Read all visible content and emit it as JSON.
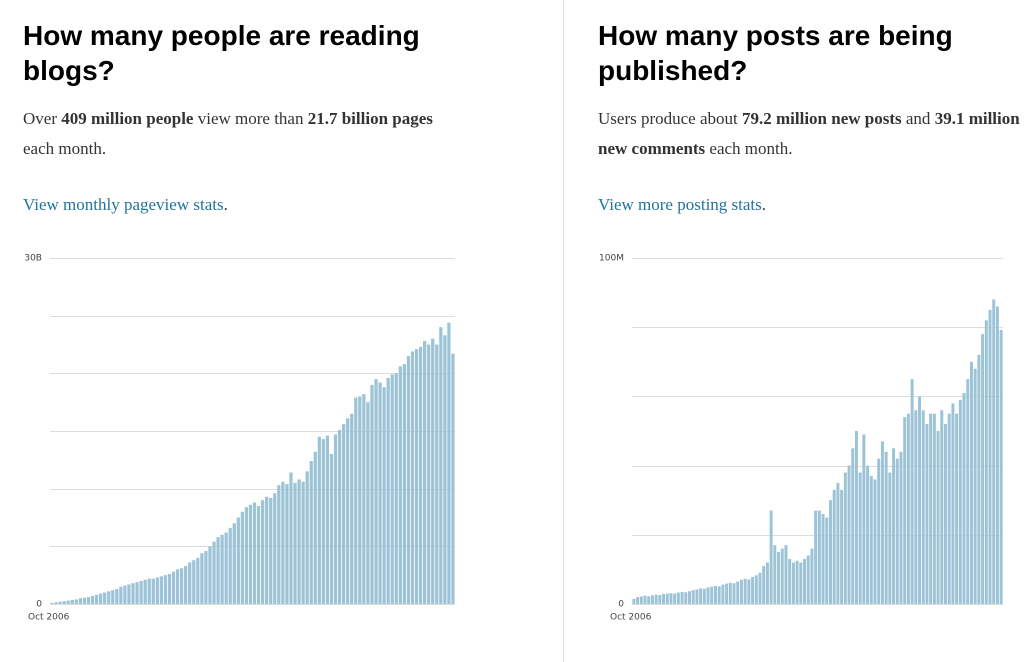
{
  "sections": [
    {
      "title": "How many people are reading blogs?",
      "paragraph": [
        "Over ",
        "409 million people",
        " view more than ",
        "21.7 billion pages",
        " each month."
      ],
      "link": "View monthly pageview stats",
      "link_after": "."
    },
    {
      "title": "How many posts are being published?",
      "paragraph": [
        "Users produce about ",
        "79.2 million new posts",
        " and ",
        "39.1 million new comments",
        " each month."
      ],
      "link": "View more posting stats",
      "link_after": "."
    }
  ],
  "chart_data": [
    {
      "type": "bar",
      "color": "#9cc4d6",
      "ylim": [
        0,
        30
      ],
      "yticks": [
        0,
        {
          "value": 30,
          "label": "30B"
        }
      ],
      "ygrid": [
        0,
        5,
        10,
        15,
        20,
        25,
        30
      ],
      "grid": true,
      "categories": [
        "Oct 2006",
        null,
        null,
        null,
        null,
        null,
        null,
        null,
        null,
        null,
        null,
        null,
        null,
        null,
        null,
        null,
        null,
        null,
        null,
        null,
        null,
        null,
        null,
        null,
        null,
        null,
        null,
        null,
        null,
        null,
        null,
        null,
        null,
        null,
        null,
        null,
        null,
        null,
        null,
        null,
        null,
        null,
        null,
        null,
        null,
        null,
        null,
        null,
        null,
        null,
        null,
        null,
        null,
        null,
        null,
        null,
        null,
        null,
        null,
        null,
        null,
        null,
        null,
        null,
        null,
        null,
        null,
        null,
        null,
        null,
        null,
        null,
        null,
        null,
        null,
        null,
        null,
        null,
        null,
        null,
        null,
        null,
        null,
        null,
        null,
        null,
        null,
        null,
        null,
        null,
        null,
        null,
        null,
        null,
        null,
        null,
        null,
        null,
        null,
        null
      ],
      "values": [
        0.1,
        0.15,
        0.2,
        0.25,
        0.3,
        0.35,
        0.4,
        0.5,
        0.55,
        0.6,
        0.7,
        0.8,
        0.9,
        1.0,
        1.1,
        1.2,
        1.3,
        1.5,
        1.6,
        1.7,
        1.8,
        1.9,
        2.0,
        2.1,
        2.2,
        2.2,
        2.3,
        2.4,
        2.5,
        2.6,
        2.8,
        3.0,
        3.1,
        3.3,
        3.6,
        3.8,
        4.0,
        4.4,
        4.6,
        5.0,
        5.4,
        5.8,
        6.0,
        6.2,
        6.6,
        7.0,
        7.5,
        8.0,
        8.4,
        8.6,
        8.8,
        8.5,
        9.0,
        9.3,
        9.2,
        9.6,
        10.3,
        10.6,
        10.4,
        11.4,
        10.5,
        10.8,
        10.6,
        11.5,
        12.4,
        13.2,
        14.5,
        14.3,
        14.6,
        13.0,
        14.7,
        15.1,
        15.6,
        16.1,
        16.5,
        17.9,
        18.0,
        18.2,
        17.5,
        19.0,
        19.5,
        19.2,
        18.8,
        19.6,
        19.9,
        20.0,
        20.6,
        20.8,
        21.5,
        21.9,
        22.1,
        22.3,
        22.8,
        22.5,
        23.0,
        22.5,
        24.0,
        23.3,
        24.4,
        21.7
      ]
    },
    {
      "type": "bar",
      "color": "#9cc4d6",
      "ylim": [
        0,
        100
      ],
      "yticks": [
        0,
        {
          "value": 100,
          "label": "100M"
        }
      ],
      "ygrid": [
        0,
        20,
        40,
        60,
        80,
        100
      ],
      "grid": true,
      "categories": [
        "Oct 2006",
        null,
        null,
        null,
        null,
        null,
        null,
        null,
        null,
        null,
        null,
        null,
        null,
        null,
        null,
        null,
        null,
        null,
        null,
        null,
        null,
        null,
        null,
        null,
        null,
        null,
        null,
        null,
        null,
        null,
        null,
        null,
        null,
        null,
        null,
        null,
        null,
        null,
        null,
        null,
        null,
        null,
        null,
        null,
        null,
        null,
        null,
        null,
        null,
        null,
        null,
        null,
        null,
        null,
        null,
        null,
        null,
        null,
        null,
        null,
        null,
        null,
        null,
        null,
        null,
        null,
        null,
        null,
        null,
        null,
        null,
        null,
        null,
        null,
        null,
        null,
        null,
        null,
        null,
        null,
        null,
        null,
        null,
        null,
        null,
        null,
        null,
        null,
        null,
        null,
        null,
        null,
        null,
        null,
        null,
        null,
        null,
        null,
        null,
        null
      ],
      "values": [
        1.5,
        2.0,
        2.2,
        2.4,
        2.2,
        2.5,
        2.7,
        2.6,
        2.9,
        3.0,
        3.1,
        3.0,
        3.3,
        3.5,
        3.4,
        3.7,
        4.0,
        4.2,
        4.5,
        4.4,
        4.8,
        5.0,
        5.2,
        5.1,
        5.6,
        5.9,
        6.1,
        6.0,
        6.5,
        7.0,
        7.3,
        7.1,
        7.8,
        8.3,
        9.0,
        11,
        12,
        27,
        17,
        15,
        16,
        17,
        13,
        12,
        12.5,
        12,
        13,
        14,
        16,
        27,
        27,
        26,
        25,
        30,
        33,
        35,
        33,
        38,
        40,
        45,
        50,
        38,
        49,
        40,
        37,
        36,
        42,
        47,
        44,
        38,
        45,
        42,
        44,
        54,
        55,
        65,
        56,
        60,
        56,
        52,
        55,
        55,
        50,
        56,
        52,
        55,
        58,
        55,
        59,
        61,
        65,
        70,
        68,
        72,
        78,
        82,
        85,
        88,
        86,
        79.2
      ]
    }
  ]
}
